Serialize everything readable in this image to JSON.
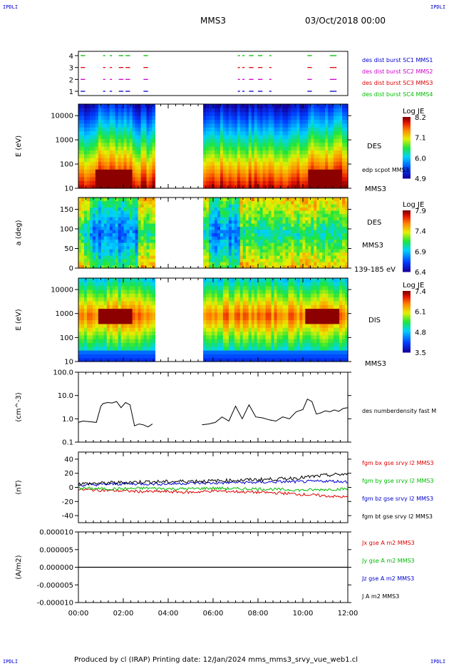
{
  "header": {
    "corner_top_left": "IPDLI",
    "corner_top_right": "IPDLI",
    "corner_bottom_left": "IPDLI",
    "corner_bottom_right": "IPDLI",
    "spacecraft": "MMS3",
    "datetime": "03/Oct/2018 00:00"
  },
  "footer": {
    "text": "Produced by cl (IRAP)   Printing date: 12/Jan/2024   mms_mms3_srvy_vue_web1.cl"
  },
  "colors": {
    "mms1": "#0000cc",
    "mms2": "#cc00cc",
    "mms3": "#dd0000",
    "mms4": "#00bb00",
    "bx": "#dd0000",
    "by": "#00bb00",
    "bz": "#0000cc",
    "bt": "#000000"
  },
  "chart_data": [
    {
      "id": "burst",
      "type": "scatter",
      "yticks": [
        "4",
        "3",
        "2",
        "1"
      ],
      "xlim": [
        0,
        12
      ],
      "legend": [
        {
          "label": "des dist burst SC1 MMS1",
          "color": "#0000cc"
        },
        {
          "label": "des dist burst SC2 MMS2",
          "color": "#cc00cc"
        },
        {
          "label": "des dist burst SC3 MMS3",
          "color": "#dd0000"
        },
        {
          "label": "des dist burst SC4 MMS4",
          "color": "#00bb00"
        }
      ],
      "intervals": [
        [
          0.1,
          0.3
        ],
        [
          1.1,
          1.2
        ],
        [
          1.4,
          1.5
        ],
        [
          1.8,
          2.0
        ],
        [
          2.1,
          2.3
        ],
        [
          2.9,
          3.1
        ],
        [
          7.1,
          7.2
        ],
        [
          7.3,
          7.4
        ],
        [
          7.6,
          7.8
        ],
        [
          8.0,
          8.2
        ],
        [
          8.5,
          8.6
        ],
        [
          10.2,
          10.4
        ],
        [
          11.2,
          11.5
        ]
      ]
    },
    {
      "id": "des_energy",
      "type": "heatmap",
      "ylabel": "E (eV)",
      "yscale": "log",
      "ylim": [
        10,
        30000
      ],
      "yticks": [
        "10000",
        "1000",
        "100",
        "10"
      ],
      "xlim": [
        0,
        12
      ],
      "gap": [
        3.4,
        5.5
      ],
      "right_labels": [
        "DES",
        "edp scpot MMS3",
        "MMS3"
      ],
      "colorbar": {
        "label": "Log JE",
        "ticks": [
          "8.2",
          "7.1",
          "6.0",
          "4.9"
        ]
      }
    },
    {
      "id": "des_pitch",
      "type": "heatmap",
      "ylabel": "a (deg)",
      "ylim": [
        0,
        180
      ],
      "yticks": [
        "150",
        "100",
        "50",
        "0"
      ],
      "xlim": [
        0,
        12
      ],
      "gap": [
        3.4,
        5.5
      ],
      "right_labels": [
        "DES",
        "MMS3",
        "139-185 eV"
      ],
      "colorbar": {
        "label": "Log JE",
        "ticks": [
          "7.9",
          "7.4",
          "6.9",
          "6.4"
        ]
      }
    },
    {
      "id": "dis_energy",
      "type": "heatmap",
      "ylabel": "E (eV)",
      "yscale": "log",
      "ylim": [
        10,
        30000
      ],
      "yticks": [
        "10000",
        "1000",
        "100",
        "10"
      ],
      "xlim": [
        0,
        12
      ],
      "gap": [
        3.4,
        5.5
      ],
      "right_labels": [
        "DIS",
        "MMS3"
      ],
      "colorbar": {
        "label": "Log JE",
        "ticks": [
          "7.4",
          "6.1",
          "4.8",
          "3.5"
        ]
      }
    },
    {
      "id": "density",
      "type": "line",
      "ylabel": "(cm^-3)",
      "yscale": "log",
      "ylim": [
        0.1,
        100
      ],
      "yticks": [
        "100.0",
        "10.0",
        "1.0",
        "0.1"
      ],
      "xlim": [
        0,
        12
      ],
      "legend": [
        {
          "label": "des numberdensity fast M",
          "color": "#000000"
        }
      ],
      "series": [
        {
          "name": "des numberdensity fast M",
          "x": [
            0.0,
            0.2,
            0.5,
            0.8,
            1.0,
            1.1,
            1.3,
            1.5,
            1.7,
            1.9,
            2.1,
            2.3,
            2.5,
            2.7,
            2.9,
            3.1,
            3.3,
            5.5,
            5.8,
            6.1,
            6.4,
            6.7,
            7.0,
            7.3,
            7.6,
            7.9,
            8.2,
            8.5,
            8.8,
            9.1,
            9.4,
            9.7,
            10.0,
            10.2,
            10.4,
            10.6,
            10.8,
            11.0,
            11.2,
            11.4,
            11.6,
            11.8,
            12.0
          ],
          "y": [
            0.7,
            0.8,
            0.75,
            0.7,
            3.5,
            4.5,
            5.0,
            4.8,
            5.5,
            3.0,
            5.0,
            4.0,
            0.5,
            0.6,
            0.55,
            0.45,
            0.6,
            0.55,
            0.6,
            0.7,
            1.2,
            0.8,
            3.5,
            1.0,
            4.0,
            1.2,
            1.1,
            0.9,
            0.8,
            1.2,
            1.0,
            2.0,
            2.5,
            7.0,
            5.5,
            1.6,
            1.8,
            2.2,
            2.0,
            2.4,
            2.1,
            2.8,
            3.0
          ]
        }
      ]
    },
    {
      "id": "bfield",
      "type": "line",
      "ylabel": "(nT)",
      "ylim": [
        -50,
        50
      ],
      "yticks": [
        "40",
        "20",
        "0",
        "-20",
        "-40"
      ],
      "xlim": [
        0,
        12
      ],
      "legend": [
        {
          "label": "fgm bx gse srvy l2 MMS3",
          "color": "#dd0000"
        },
        {
          "label": "fgm by gse srvy l2 MMS3",
          "color": "#00bb00"
        },
        {
          "label": "fgm bz gse srvy l2 MMS3",
          "color": "#0000cc"
        },
        {
          "label": "fgm bt gse srvy l2 MMS3",
          "color": "#000000"
        }
      ],
      "x": [
        0,
        1,
        2,
        3,
        4,
        5,
        6,
        7,
        8,
        9,
        10,
        11,
        12
      ],
      "series": [
        {
          "name": "fgm bx gse srvy l2 MMS3",
          "color": "#dd0000",
          "values": [
            -3,
            -4,
            -5,
            -6,
            -6,
            -7,
            -5,
            -6,
            -7,
            -8,
            -10,
            -12,
            -14
          ]
        },
        {
          "name": "fgm by gse srvy l2 MMS3",
          "color": "#00bb00",
          "values": [
            -1,
            -2,
            -2,
            -1,
            -2,
            -2,
            -1,
            -2,
            -2,
            -3,
            -4,
            -3,
            -2
          ]
        },
        {
          "name": "fgm bz gse srvy l2 MMS3",
          "color": "#0000cc",
          "values": [
            3,
            4,
            5,
            5,
            5,
            6,
            6,
            7,
            7,
            8,
            8,
            9,
            8
          ]
        },
        {
          "name": "fgm bt gse srvy l2 MMS3",
          "color": "#000000",
          "values": [
            5,
            6,
            7,
            8,
            8,
            9,
            9,
            10,
            11,
            12,
            14,
            17,
            19
          ]
        }
      ]
    },
    {
      "id": "current",
      "type": "line",
      "ylabel": "(A/m2)",
      "ylim": [
        -1e-05,
        1e-05
      ],
      "yticks": [
        "0.000010",
        "0.000005",
        "0.000000",
        "-0.000005",
        "-0.000010"
      ],
      "xlim": [
        0,
        12
      ],
      "xticks": [
        "00:00",
        "02:00",
        "04:00",
        "06:00",
        "08:00",
        "10:00",
        "12:00"
      ],
      "legend": [
        {
          "label": "Jx gse A m2 MMS3",
          "color": "#dd0000"
        },
        {
          "label": "Jy gse A m2 MMS3",
          "color": "#00bb00"
        },
        {
          "label": "Jz gse A m2 MMS3",
          "color": "#0000cc"
        },
        {
          "label": "J A m2 MMS3",
          "color": "#000000"
        }
      ],
      "series": [
        {
          "name": "J A m2 MMS3",
          "x": [
            0,
            12
          ],
          "y": [
            0,
            0
          ]
        }
      ]
    }
  ]
}
